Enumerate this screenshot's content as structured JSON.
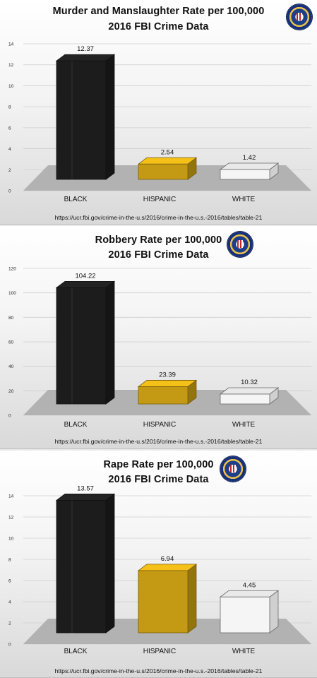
{
  "chart_data": [
    {
      "type": "bar",
      "title": "Murder and Manslaughter Rate per 100,000",
      "subtitle": "2016 FBI Crime Data",
      "categories": [
        "BLACK",
        "HISPANIC",
        "WHITE"
      ],
      "values": [
        12.37,
        2.54,
        1.42
      ],
      "value_labels": [
        "12.37",
        "2.54",
        "1.42"
      ],
      "ylim": [
        0,
        14
      ],
      "yticks": [
        0,
        2,
        4,
        6,
        8,
        10,
        12,
        14
      ],
      "grid": true,
      "bar_colors": [
        "#1c1c1c",
        "#c49a14",
        "#f5f5f5"
      ],
      "source": "https://ucr.fbi.gov/crime-in-the-u.s/2016/crime-in-the-u.s.-2016/tables/table-21"
    },
    {
      "type": "bar",
      "title": "Robbery Rate per 100,000",
      "subtitle": "2016 FBI Crime Data",
      "categories": [
        "BLACK",
        "HISPANIC",
        "WHITE"
      ],
      "values": [
        104.22,
        23.39,
        10.32
      ],
      "value_labels": [
        "104.22",
        "23.39",
        "10.32"
      ],
      "ylim": [
        0,
        120
      ],
      "yticks": [
        0,
        20,
        40,
        60,
        80,
        100,
        120
      ],
      "grid": true,
      "bar_colors": [
        "#1c1c1c",
        "#c49a14",
        "#f5f5f5"
      ],
      "source": "https://ucr.fbi.gov/crime-in-the-u.s/2016/crime-in-the-u.s.-2016/tables/table-21"
    },
    {
      "type": "bar",
      "title": "Rape Rate per 100,000",
      "subtitle": "2016 FBI Crime Data",
      "categories": [
        "BLACK",
        "HISPANIC",
        "WHITE"
      ],
      "values": [
        13.57,
        6.94,
        4.45
      ],
      "value_labels": [
        "13.57",
        "6.94",
        "4.45"
      ],
      "ylim": [
        0,
        14
      ],
      "yticks": [
        0,
        2,
        4,
        6,
        8,
        10,
        12,
        14
      ],
      "grid": true,
      "bar_colors": [
        "#1c1c1c",
        "#c49a14",
        "#f5f5f5"
      ],
      "source": "https://ucr.fbi.gov/crime-in-the-u.s/2016/crime-in-the-u.s.-2016/tables/table-21"
    }
  ],
  "seal_icon": "fbi-seal-icon"
}
